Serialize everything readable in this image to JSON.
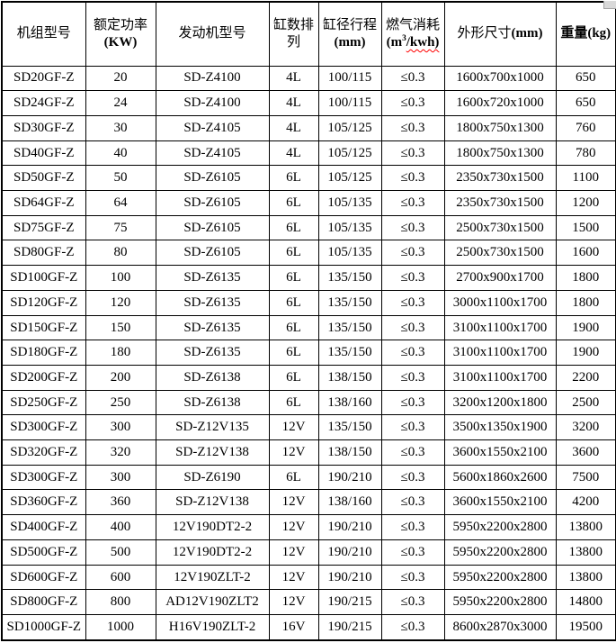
{
  "colors": {
    "text": "#000000",
    "border": "#000000",
    "background": "#ffffff",
    "squiggle": "#ff0000"
  },
  "header": {
    "model": "机组型号",
    "power_line1": "额定功率",
    "power_line2": "(KW)",
    "engine": "发动机型号",
    "cylinders_line1": "缸数排",
    "cylinders_line2": "列",
    "bore_line1": "缸径行程",
    "bore_line2": "(mm)",
    "gas_line1": "燃气消耗",
    "gas_unit_prefix": "(m",
    "gas_unit_sup": "3",
    "gas_unit_suffix": "/kwh)",
    "dimensions": "外形尺寸",
    "dimensions_unit": "(mm)",
    "weight": "重量",
    "weight_unit": "(kg)"
  },
  "table": {
    "column_keys": [
      "model",
      "power-kw",
      "engine-model",
      "cylinder-arrangement",
      "bore-stroke-mm",
      "gas-consumption",
      "dimensions-mm",
      "weight-kg"
    ],
    "rows": [
      [
        "SD20GF-Z",
        "20",
        "SD-Z4100",
        "4L",
        "100/115",
        "≤0.3",
        "1600x700x1000",
        "650"
      ],
      [
        "SD24GF-Z",
        "24",
        "SD-Z4100",
        "4L",
        "100/115",
        "≤0.3",
        "1600x720x1000",
        "650"
      ],
      [
        "SD30GF-Z",
        "30",
        "SD-Z4105",
        "4L",
        "105/125",
        "≤0.3",
        "1800x750x1300",
        "760"
      ],
      [
        "SD40GF-Z",
        "40",
        "SD-Z4105",
        "4L",
        "105/125",
        "≤0.3",
        "1800x750x1300",
        "780"
      ],
      [
        "SD50GF-Z",
        "50",
        "SD-Z6105",
        "6L",
        "105/125",
        "≤0.3",
        "2350x730x1500",
        "1100"
      ],
      [
        "SD64GF-Z",
        "64",
        "SD-Z6105",
        "6L",
        "105/135",
        "≤0.3",
        "2350x730x1500",
        "1200"
      ],
      [
        "SD75GF-Z",
        "75",
        "SD-Z6105",
        "6L",
        "105/135",
        "≤0.3",
        "2500x730x1500",
        "1500"
      ],
      [
        "SD80GF-Z",
        "80",
        "SD-Z6105",
        "6L",
        "105/135",
        "≤0.3",
        "2500x730x1500",
        "1600"
      ],
      [
        "SD100GF-Z",
        "100",
        "SD-Z6135",
        "6L",
        "135/150",
        "≤0.3",
        "2700x900x1700",
        "1800"
      ],
      [
        "SD120GF-Z",
        "120",
        "SD-Z6135",
        "6L",
        "135/150",
        "≤0.3",
        "3000x1100x1700",
        "1800"
      ],
      [
        "SD150GF-Z",
        "150",
        "SD-Z6135",
        "6L",
        "135/150",
        "≤0.3",
        "3100x1100x1700",
        "1900"
      ],
      [
        "SD180GF-Z",
        "180",
        "SD-Z6135",
        "6L",
        "135/150",
        "≤0.3",
        "3100x1100x1700",
        "1900"
      ],
      [
        "SD200GF-Z",
        "200",
        "SD-Z6138",
        "6L",
        "138/150",
        "≤0.3",
        "3100x1100x1700",
        "2200"
      ],
      [
        "SD250GF-Z",
        "250",
        "SD-Z6138",
        "6L",
        "138/160",
        "≤0.3",
        "3200x1200x1800",
        "2500"
      ],
      [
        "SD300GF-Z",
        "300",
        "SD-Z12V135",
        "12V",
        "135/150",
        "≤0.3",
        "3500x1350x1900",
        "3200"
      ],
      [
        "SD320GF-Z",
        "320",
        "SD-Z12V138",
        "12V",
        "138/150",
        "≤0.3",
        "3600x1550x2100",
        "3600"
      ],
      [
        "SD300GF-Z",
        "300",
        "SD-Z6190",
        "6L",
        "190/210",
        "≤0.3",
        "5600x1860x2600",
        "7500"
      ],
      [
        "SD360GF-Z",
        "360",
        "SD-Z12V138",
        "12V",
        "138/160",
        "≤0.3",
        "3600x1550x2100",
        "4200"
      ],
      [
        "SD400GF-Z",
        "400",
        "12V190DT2-2",
        "12V",
        "190/210",
        "≤0.3",
        "5950x2200x2800",
        "13800"
      ],
      [
        "SD500GF-Z",
        "500",
        "12V190DT2-2",
        "12V",
        "190/210",
        "≤0.3",
        "5950x2200x2800",
        "13800"
      ],
      [
        "SD600GF-Z",
        "600",
        "12V190ZLT-2",
        "12V",
        "190/210",
        "≤0.3",
        "5950x2200x2800",
        "13800"
      ],
      [
        "SD800GF-Z",
        "800",
        "AD12V190ZLT2",
        "12V",
        "190/215",
        "≤0.3",
        "5950x2200x2800",
        "14800"
      ],
      [
        "SD1000GF-Z",
        "1000",
        "H16V190ZLT-2",
        "16V",
        "190/215",
        "≤0.3",
        "8600x2870x3000",
        "19500"
      ]
    ]
  }
}
